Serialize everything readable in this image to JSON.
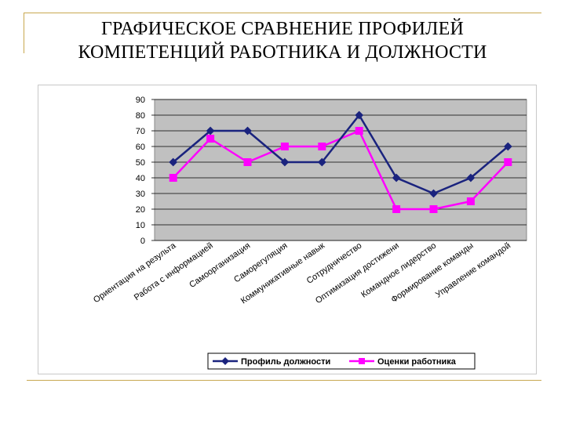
{
  "title_line1": "ГРАФИЧЕСКОЕ СРАВНЕНИЕ ПРОФИЛЕЙ",
  "title_line2": "КОМПЕТЕНЦИЙ РАБОТНИКА И ДОЛЖНОСТИ",
  "chart_data": {
    "type": "line",
    "categories": [
      "Ориентация на результа",
      "Работа с информацией",
      "Самоорганизация",
      "Саморегуляция",
      "Коммуникативные навык",
      "Сотрудничество",
      "Оптимизация достижени",
      "Командное лидерство",
      "Формирование команды",
      "Управление командой"
    ],
    "series": [
      {
        "name": "Профиль должности",
        "color": "#1a237e",
        "marker": "diamond",
        "values": [
          50,
          70,
          70,
          50,
          50,
          80,
          40,
          30,
          40,
          60
        ]
      },
      {
        "name": "Оценки работника",
        "color": "#ff00ff",
        "marker": "square",
        "values": [
          40,
          65,
          50,
          60,
          60,
          70,
          20,
          20,
          25,
          50
        ]
      }
    ],
    "ylim": [
      0,
      90
    ],
    "yticks": [
      "0",
      "10",
      "20",
      "30",
      "40",
      "50",
      "60",
      "70",
      "80",
      "90"
    ],
    "grid": true,
    "plot_background": "#c0c0c0",
    "legend_position": "bottom"
  }
}
